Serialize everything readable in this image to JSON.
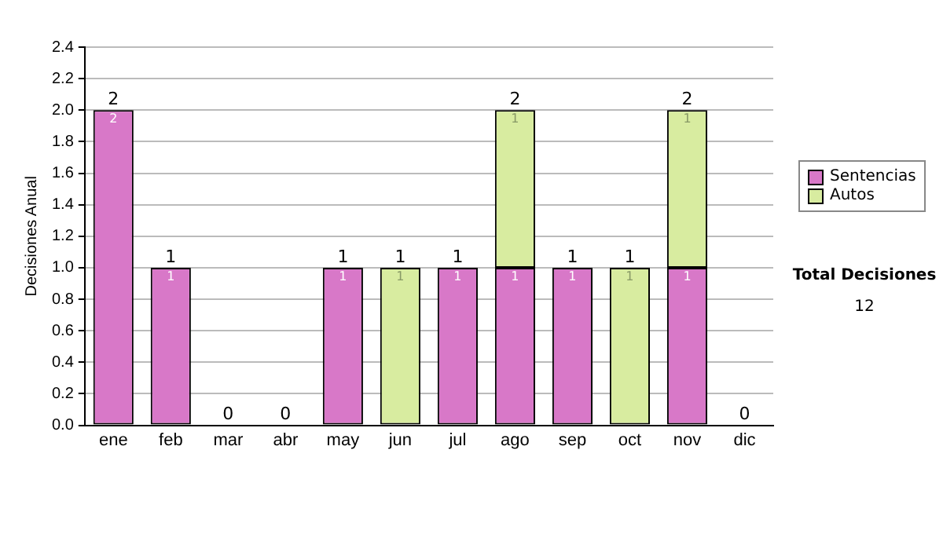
{
  "chart_data": {
    "type": "bar",
    "stacked": true,
    "ylabel": "Decisiones Anual",
    "categories": [
      "ene",
      "feb",
      "mar",
      "abr",
      "may",
      "jun",
      "jul",
      "ago",
      "sep",
      "oct",
      "nov",
      "dic"
    ],
    "series": [
      {
        "name": "Sentencias",
        "color": "#d878c8",
        "values": [
          2,
          1,
          0,
          0,
          1,
          0,
          1,
          1,
          1,
          0,
          1,
          0
        ],
        "value_labels": [
          "2",
          "1",
          null,
          null,
          "1",
          null,
          "1",
          "1",
          "1",
          null,
          "1",
          null
        ]
      },
      {
        "name": "Autos",
        "color": "#d8eca0",
        "values": [
          0,
          0,
          0,
          0,
          0,
          1,
          0,
          1,
          0,
          1,
          1,
          0
        ],
        "value_labels": [
          null,
          null,
          null,
          null,
          null,
          "1",
          null,
          "1",
          null,
          "1",
          "1",
          null
        ]
      }
    ],
    "totals": [
      "2",
      "1",
      "0",
      "0",
      "1",
      "1",
      "1",
      "2",
      "1",
      "1",
      "2",
      "0"
    ],
    "ylim": [
      0,
      2.4
    ],
    "yticks": [
      {
        "value": 0,
        "label": "0.0"
      },
      {
        "value": 0.2,
        "label": "0.2"
      },
      {
        "value": 0.4,
        "label": "0.4"
      },
      {
        "value": 0.6,
        "label": "0.6"
      },
      {
        "value": 0.8,
        "label": "0.8"
      },
      {
        "value": 1,
        "label": "1.0"
      },
      {
        "value": 1.2,
        "label": "1.2"
      },
      {
        "value": 1.4,
        "label": "1.4"
      },
      {
        "value": 1.6,
        "label": "1.6"
      },
      {
        "value": 1.8,
        "label": "1.8"
      },
      {
        "value": 2,
        "label": "2.0"
      },
      {
        "value": 2.2,
        "label": "2.2"
      },
      {
        "value": 2.4,
        "label": "2.4"
      }
    ],
    "grid": "y",
    "legend": "right",
    "annotations": [
      "Total Decisiones",
      "12"
    ]
  }
}
